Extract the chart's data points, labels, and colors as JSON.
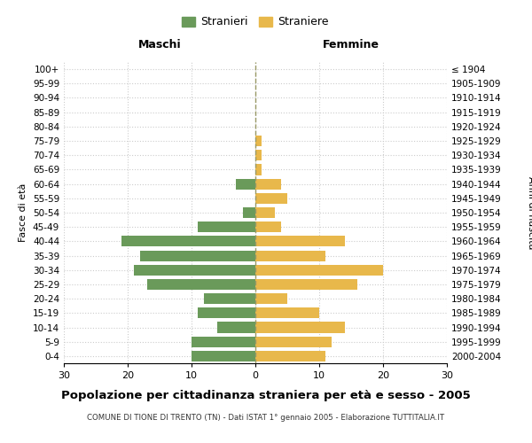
{
  "age_groups": [
    "100+",
    "95-99",
    "90-94",
    "85-89",
    "80-84",
    "75-79",
    "70-74",
    "65-69",
    "60-64",
    "55-59",
    "50-54",
    "45-49",
    "40-44",
    "35-39",
    "30-34",
    "25-29",
    "20-24",
    "15-19",
    "10-14",
    "5-9",
    "0-4"
  ],
  "birth_years": [
    "≤ 1904",
    "1905-1909",
    "1910-1914",
    "1915-1919",
    "1920-1924",
    "1925-1929",
    "1930-1934",
    "1935-1939",
    "1940-1944",
    "1945-1949",
    "1950-1954",
    "1955-1959",
    "1960-1964",
    "1965-1969",
    "1970-1974",
    "1975-1979",
    "1980-1984",
    "1985-1989",
    "1990-1994",
    "1995-1999",
    "2000-2004"
  ],
  "maschi": [
    0,
    0,
    0,
    0,
    0,
    0,
    0,
    0,
    3,
    0,
    2,
    9,
    21,
    18,
    19,
    17,
    8,
    9,
    6,
    10,
    10
  ],
  "femmine": [
    0,
    0,
    0,
    0,
    0,
    1,
    1,
    1,
    4,
    5,
    3,
    4,
    14,
    11,
    20,
    16,
    5,
    10,
    14,
    12,
    11
  ],
  "maschi_color": "#6a9a5a",
  "femmine_color": "#e8b84b",
  "title": "Popolazione per cittadinanza straniera per età e sesso - 2005",
  "subtitle": "COMUNE DI TIONE DI TRENTO (TN) - Dati ISTAT 1° gennaio 2005 - Elaborazione TUTTITALIA.IT",
  "xlabel_left": "Maschi",
  "xlabel_right": "Femmine",
  "ylabel_left": "Fasce di età",
  "ylabel_right": "Anni di nascita",
  "legend_stranieri": "Stranieri",
  "legend_straniere": "Straniere",
  "xlim": 30,
  "background_color": "#ffffff",
  "grid_color": "#cccccc"
}
